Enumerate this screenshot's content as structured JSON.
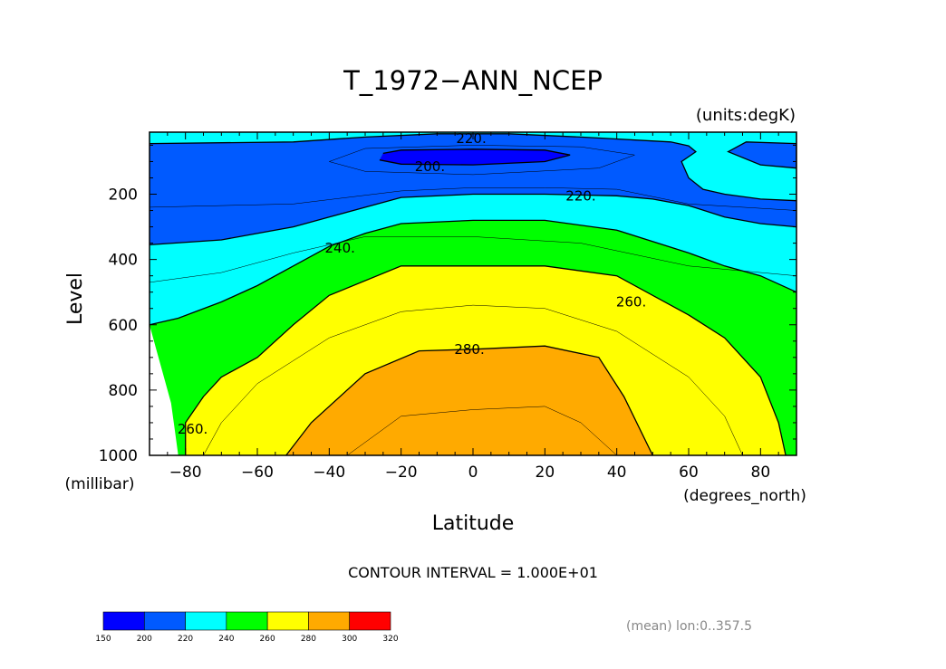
{
  "chart_data": {
    "type": "contour",
    "title": "T_1972−ANN_NCEP",
    "units_label": "(units:degK)",
    "xlabel": "Latitude",
    "xunits": "(degrees_north)",
    "ylabel": "Level",
    "yunits": "(millibar)",
    "xlim": [
      -90,
      90
    ],
    "ylim": [
      1000,
      10
    ],
    "x_ticks": [
      -80,
      -60,
      -40,
      -20,
      0,
      20,
      40,
      60,
      80
    ],
    "y_ticks": [
      200,
      400,
      600,
      800,
      1000
    ],
    "x_tick_labels": [
      "−80",
      "−60",
      "−40",
      "−20",
      "0",
      "20",
      "40",
      "60",
      "80"
    ],
    "y_tick_labels": [
      "200",
      "400",
      "600",
      "800",
      "1000"
    ],
    "contour_interval_text": "CONTOUR INTERVAL = 1.000E+01",
    "footnote": "(mean) lon:0..357.5",
    "contour_labels": [
      {
        "text": "220.",
        "lat": -0.5,
        "level": 30
      },
      {
        "text": "200.",
        "lat": -12,
        "level": 115
      },
      {
        "text": "220.",
        "lat": 30,
        "level": 205
      },
      {
        "text": "240.",
        "lat": -37,
        "level": 365
      },
      {
        "text": "260.",
        "lat": 44,
        "level": 530
      },
      {
        "text": "280.",
        "lat": -1,
        "level": 675
      },
      {
        "text": "260.",
        "lat": -78,
        "level": 920
      }
    ],
    "colorbar": {
      "levels": [
        150,
        200,
        220,
        240,
        260,
        280,
        300,
        320
      ],
      "labels": [
        "150",
        "200",
        "220",
        "240",
        "260",
        "280",
        "300",
        "320"
      ],
      "colors": [
        "#0000ff",
        "#005aff",
        "#00ffff",
        "#00ff00",
        "#ffff00",
        "#ffaa00",
        "#ff0000"
      ]
    },
    "band_colors": {
      "below_200": "#0000ff",
      "200_220": "#005aff",
      "220_240": "#00ffff",
      "240_260": "#00ff00",
      "260_280": "#ffff00",
      "280_300": "#ffaa00"
    },
    "contours": {
      "c200": [
        [
          -25,
          75
        ],
        [
          -20,
          65
        ],
        [
          0,
          62
        ],
        [
          20,
          65
        ],
        [
          27,
          80
        ],
        [
          20,
          100
        ],
        [
          0,
          110
        ],
        [
          -20,
          108
        ],
        [
          -26,
          95
        ]
      ],
      "c220_top": [
        [
          -90,
          45
        ],
        [
          -50,
          40
        ],
        [
          -30,
          25
        ],
        [
          -10,
          15
        ],
        [
          10,
          15
        ],
        [
          30,
          25
        ],
        [
          55,
          40
        ],
        [
          60,
          52
        ],
        [
          62,
          70
        ],
        [
          58,
          100
        ],
        [
          60,
          150
        ],
        [
          64,
          185
        ],
        [
          70,
          200
        ],
        [
          80,
          215
        ],
        [
          90,
          220
        ],
        [
          90,
          10
        ],
        [
          -90,
          10
        ]
      ],
      "c220_right": [
        [
          71,
          70
        ],
        [
          76,
          40
        ],
        [
          90,
          45
        ],
        [
          90,
          120
        ],
        [
          80,
          110
        ]
      ],
      "c220_mid": [
        [
          -90,
          355
        ],
        [
          -70,
          340
        ],
        [
          -50,
          300
        ],
        [
          -40,
          270
        ],
        [
          -20,
          210
        ],
        [
          0,
          200
        ],
        [
          20,
          200
        ],
        [
          40,
          205
        ],
        [
          50,
          215
        ],
        [
          60,
          235
        ],
        [
          70,
          270
        ],
        [
          80,
          290
        ],
        [
          90,
          300
        ]
      ],
      "c240": [
        [
          -90,
          600
        ],
        [
          -82,
          580
        ],
        [
          -70,
          530
        ],
        [
          -60,
          480
        ],
        [
          -50,
          420
        ],
        [
          -40,
          360
        ],
        [
          -30,
          320
        ],
        [
          -20,
          290
        ],
        [
          0,
          280
        ],
        [
          20,
          280
        ],
        [
          40,
          310
        ],
        [
          60,
          380
        ],
        [
          70,
          420
        ],
        [
          80,
          450
        ],
        [
          90,
          500
        ]
      ],
      "c260": [
        [
          -80,
          1000
        ],
        [
          -80,
          900
        ],
        [
          -75,
          820
        ],
        [
          -70,
          760
        ],
        [
          -60,
          700
        ],
        [
          -50,
          600
        ],
        [
          -40,
          510
        ],
        [
          -20,
          420
        ],
        [
          0,
          420
        ],
        [
          20,
          420
        ],
        [
          40,
          450
        ],
        [
          60,
          570
        ],
        [
          70,
          640
        ],
        [
          80,
          760
        ],
        [
          85,
          900
        ],
        [
          87,
          1000
        ]
      ],
      "c280": [
        [
          -52,
          1000
        ],
        [
          -45,
          900
        ],
        [
          -30,
          750
        ],
        [
          -15,
          680
        ],
        [
          0,
          675
        ],
        [
          20,
          665
        ],
        [
          35,
          700
        ],
        [
          42,
          820
        ],
        [
          50,
          1000
        ]
      ],
      "c230": [
        [
          -90,
          240
        ],
        [
          -50,
          230
        ],
        [
          -20,
          190
        ],
        [
          0,
          180
        ],
        [
          20,
          180
        ],
        [
          40,
          185
        ],
        [
          60,
          230
        ],
        [
          90,
          250
        ]
      ],
      "c250": [
        [
          -90,
          470
        ],
        [
          -70,
          440
        ],
        [
          -50,
          380
        ],
        [
          -30,
          330
        ],
        [
          0,
          330
        ],
        [
          30,
          350
        ],
        [
          60,
          420
        ],
        [
          90,
          450
        ]
      ],
      "c270": [
        [
          -75,
          1000
        ],
        [
          -70,
          900
        ],
        [
          -60,
          780
        ],
        [
          -40,
          640
        ],
        [
          -20,
          560
        ],
        [
          0,
          540
        ],
        [
          20,
          550
        ],
        [
          40,
          620
        ],
        [
          60,
          760
        ],
        [
          70,
          880
        ],
        [
          75,
          1000
        ]
      ],
      "c290": [
        [
          -35,
          1000
        ],
        [
          -20,
          880
        ],
        [
          0,
          860
        ],
        [
          20,
          850
        ],
        [
          30,
          900
        ],
        [
          40,
          1000
        ]
      ],
      "c210": [
        [
          -40,
          100
        ],
        [
          -30,
          60
        ],
        [
          0,
          50
        ],
        [
          30,
          55
        ],
        [
          45,
          80
        ],
        [
          35,
          120
        ],
        [
          0,
          140
        ],
        [
          -30,
          130
        ]
      ]
    },
    "missing_region": [
      [
        -90,
        600
      ],
      [
        -88,
        680
      ],
      [
        -86,
        760
      ],
      [
        -84,
        840
      ],
      [
        -83,
        920
      ],
      [
        -82,
        1000
      ],
      [
        -90,
        1000
      ]
    ]
  }
}
